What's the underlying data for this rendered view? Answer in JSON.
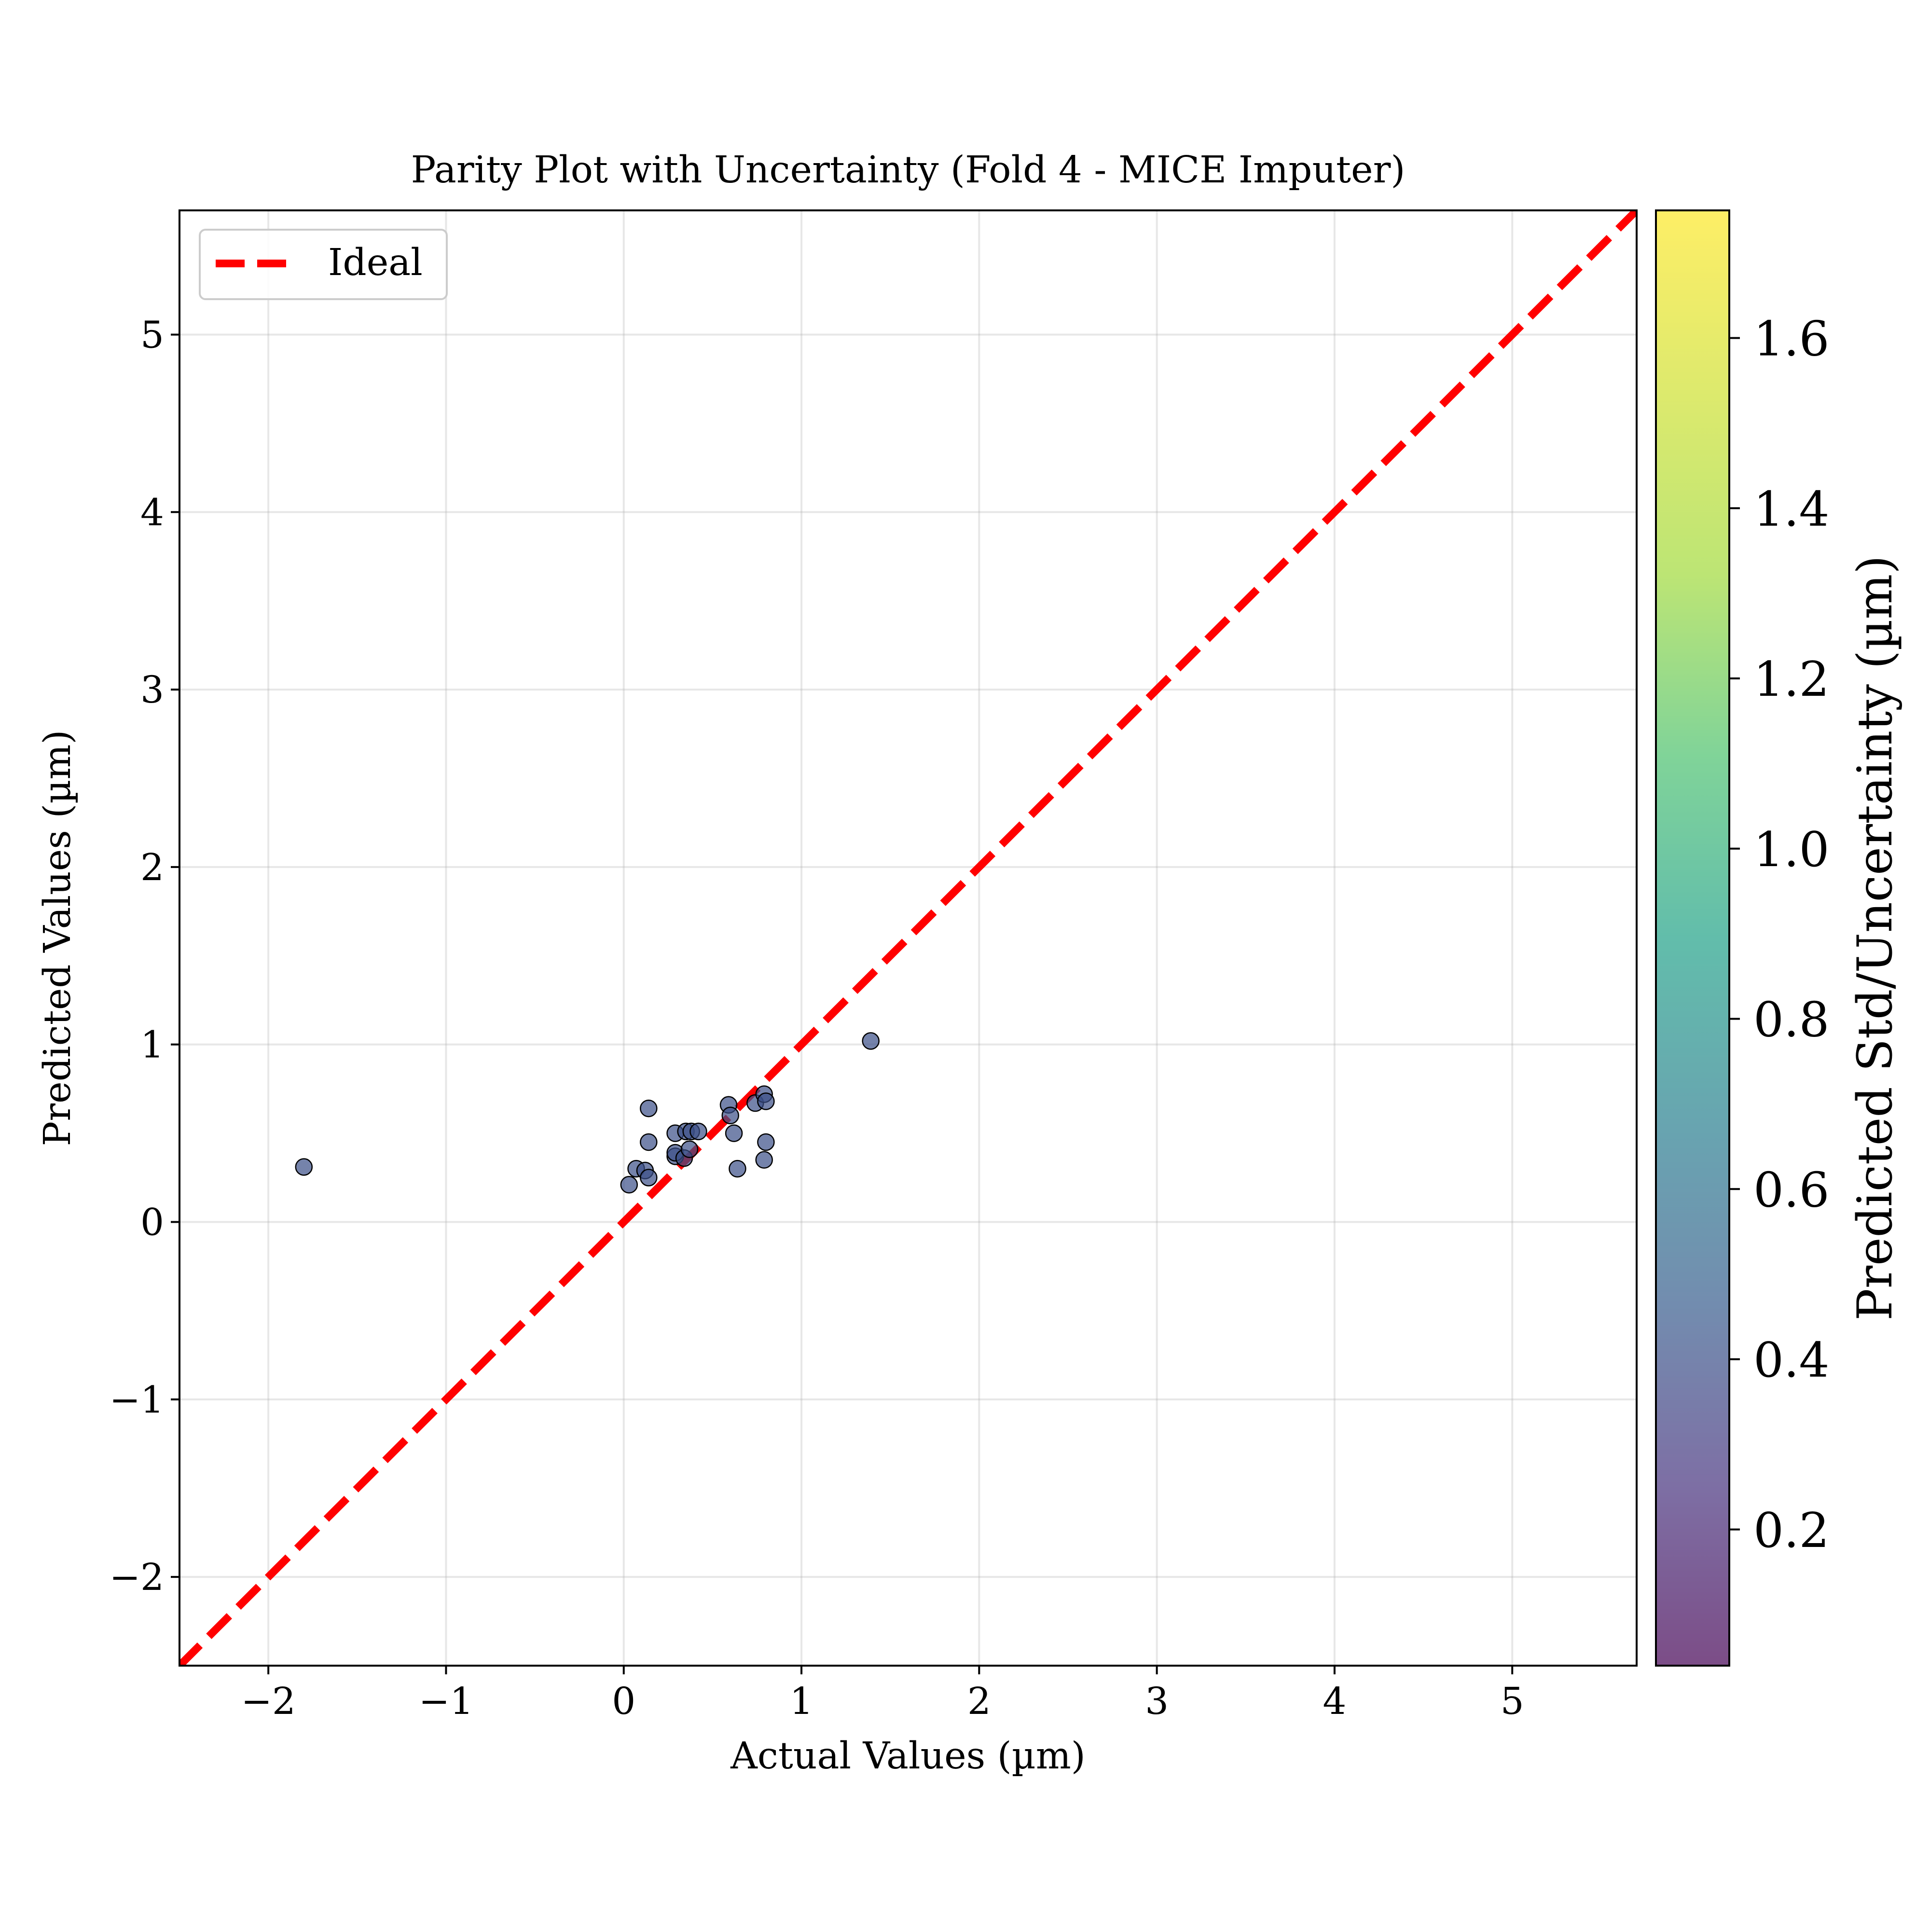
{
  "chart_data": {
    "type": "scatter",
    "title": "Parity Plot with Uncertainty (Fold 4 - MICE Imputer)",
    "xlabel": "Actual Values (µm)",
    "ylabel": "Predicted Values (µm)",
    "xlim": [
      -2.5,
      5.7
    ],
    "ylim": [
      -2.5,
      5.7
    ],
    "xticks": [
      -2,
      -1,
      0,
      1,
      2,
      3,
      4,
      5
    ],
    "yticks": [
      -2,
      -1,
      0,
      1,
      2,
      3,
      4,
      5
    ],
    "xtick_labels": [
      "−2",
      "−1",
      "0",
      "1",
      "2",
      "3",
      "4",
      "5"
    ],
    "ytick_labels": [
      "−2",
      "−1",
      "0",
      "1",
      "2",
      "3",
      "4",
      "5"
    ],
    "grid": true,
    "legend": {
      "position": "upper-left",
      "entries": [
        "Ideal"
      ]
    },
    "ideal_line": {
      "name": "Ideal",
      "x": [
        -2.5,
        5.7
      ],
      "y": [
        -2.5,
        5.7
      ],
      "color": "#ff0000",
      "style": "dashed"
    },
    "series": [
      {
        "name": "",
        "x": [
          -1.8,
          0.03,
          0.07,
          0.12,
          0.14,
          0.14,
          0.14,
          0.29,
          0.29,
          0.29,
          0.34,
          0.35,
          0.37,
          0.38,
          0.42,
          0.59,
          0.6,
          0.62,
          0.64,
          0.74,
          0.79,
          0.79,
          0.8,
          0.8,
          1.39
        ],
        "y": [
          0.31,
          0.21,
          0.3,
          0.29,
          0.25,
          0.45,
          0.64,
          0.37,
          0.39,
          0.5,
          0.36,
          0.51,
          0.41,
          0.51,
          0.51,
          0.66,
          0.6,
          0.5,
          0.3,
          0.67,
          0.35,
          0.72,
          0.45,
          0.68,
          1.02
        ],
        "uncertainty": [
          0.4,
          0.4,
          0.4,
          0.4,
          0.4,
          0.4,
          0.4,
          0.4,
          0.4,
          0.4,
          0.4,
          0.4,
          0.4,
          0.4,
          0.4,
          0.4,
          0.4,
          0.4,
          0.4,
          0.4,
          0.4,
          0.4,
          0.4,
          0.4,
          0.4
        ]
      }
    ],
    "colorbar": {
      "label": "Predicted Std/Uncertainty (µm)",
      "min": 0.04,
      "max": 1.75,
      "ticks": [
        0.2,
        0.4,
        0.6,
        0.8,
        1.0,
        1.2,
        1.4,
        1.6
      ],
      "tick_labels": [
        "0.2",
        "0.4",
        "0.6",
        "0.8",
        "1.0",
        "1.2",
        "1.4",
        "1.6"
      ],
      "colormap": "viridis",
      "alpha": 0.7
    }
  }
}
